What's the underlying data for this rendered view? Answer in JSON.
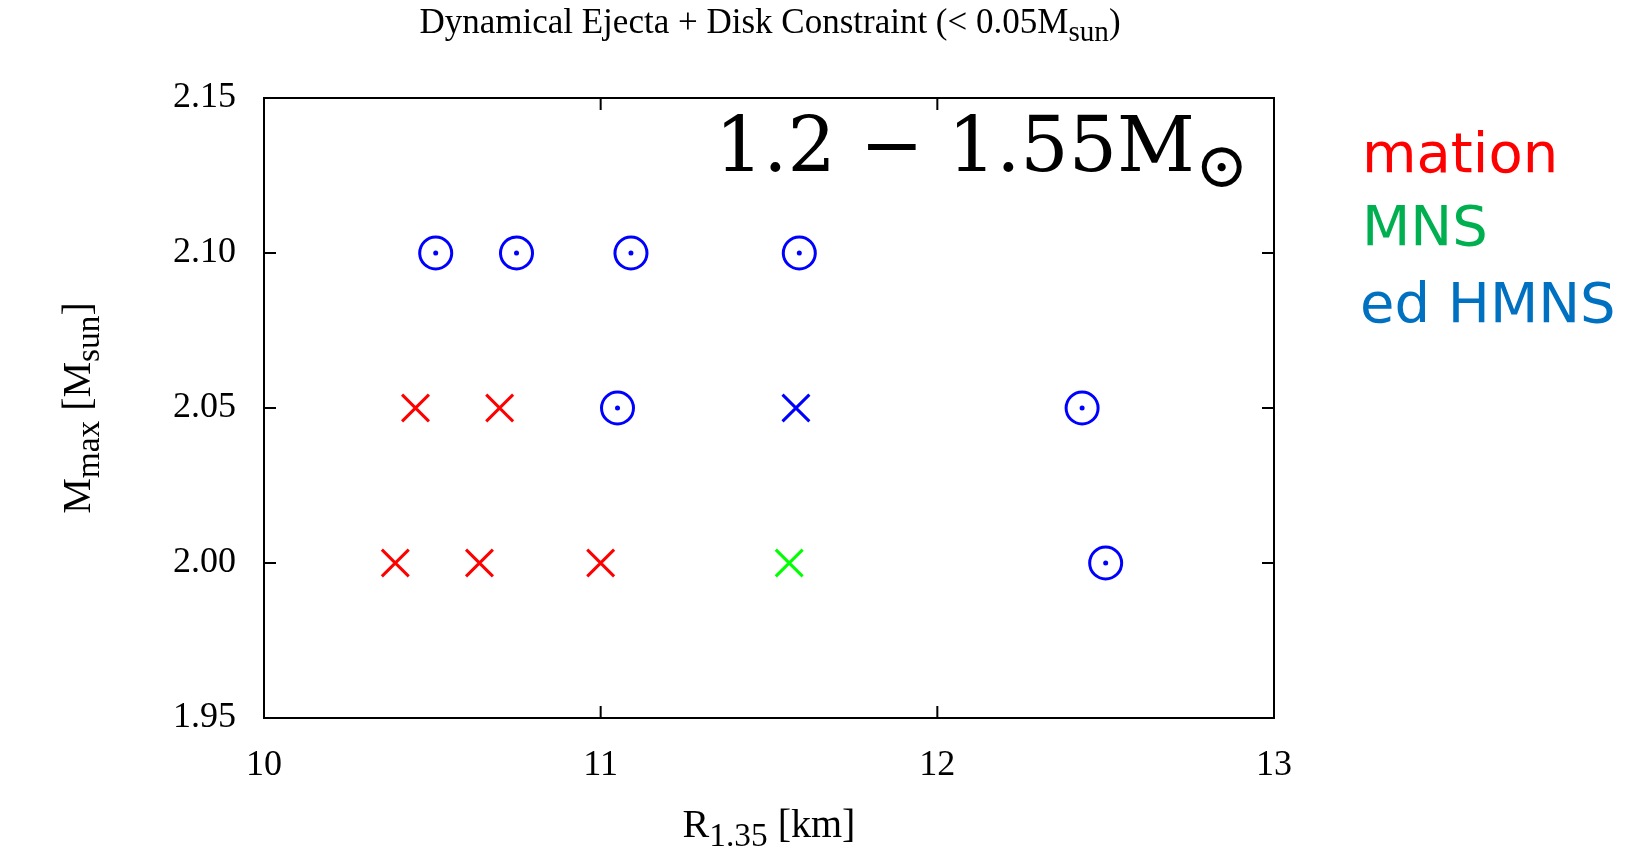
{
  "chart_data": {
    "type": "scatter",
    "title": "Dynamical Ejecta + Disk Constraint (< 0.05M$_{sun}$)",
    "xlabel": "R$_{1.35}$ [km]",
    "ylabel": "M$_{max}$ [M$_{sun}$]",
    "annotations": [
      "1.2 − 1.55M$_{⊙}$",
      "mation",
      "MNS",
      "ed HMNS"
    ],
    "xlim": [
      10,
      13
    ],
    "xticks": [
      10,
      11,
      12,
      13
    ],
    "ylim": [
      1.95,
      2.15
    ],
    "yticks": [
      {
        "value": 1.95,
        "label": "1.95"
      },
      {
        "value": 2.0,
        "label": "2.00"
      },
      {
        "value": 2.05,
        "label": "2.05"
      },
      {
        "value": 2.1,
        "label": "2.10"
      },
      {
        "value": 2.15,
        "label": "2.15"
      }
    ],
    "series": [
      {
        "color": "#ff0000",
        "marker": "cross",
        "x": [
          10.45,
          10.7,
          10.39,
          10.64,
          11.0
        ],
        "values": [
          2.05,
          2.05,
          2.0,
          2.0,
          2.0
        ]
      },
      {
        "color": "#00ff00",
        "marker": "cross",
        "x": [
          11.56
        ],
        "values": [
          2.0
        ]
      },
      {
        "color": "#0000ff",
        "marker": "cross",
        "x": [
          11.58
        ],
        "values": [
          2.05
        ]
      },
      {
        "color": "#0000ff",
        "marker": "circle",
        "x": [
          10.51,
          10.75,
          11.09,
          11.59,
          11.05,
          12.43,
          12.5
        ],
        "values": [
          2.1,
          2.1,
          2.1,
          2.1,
          2.05,
          2.05,
          2.0
        ]
      }
    ]
  }
}
